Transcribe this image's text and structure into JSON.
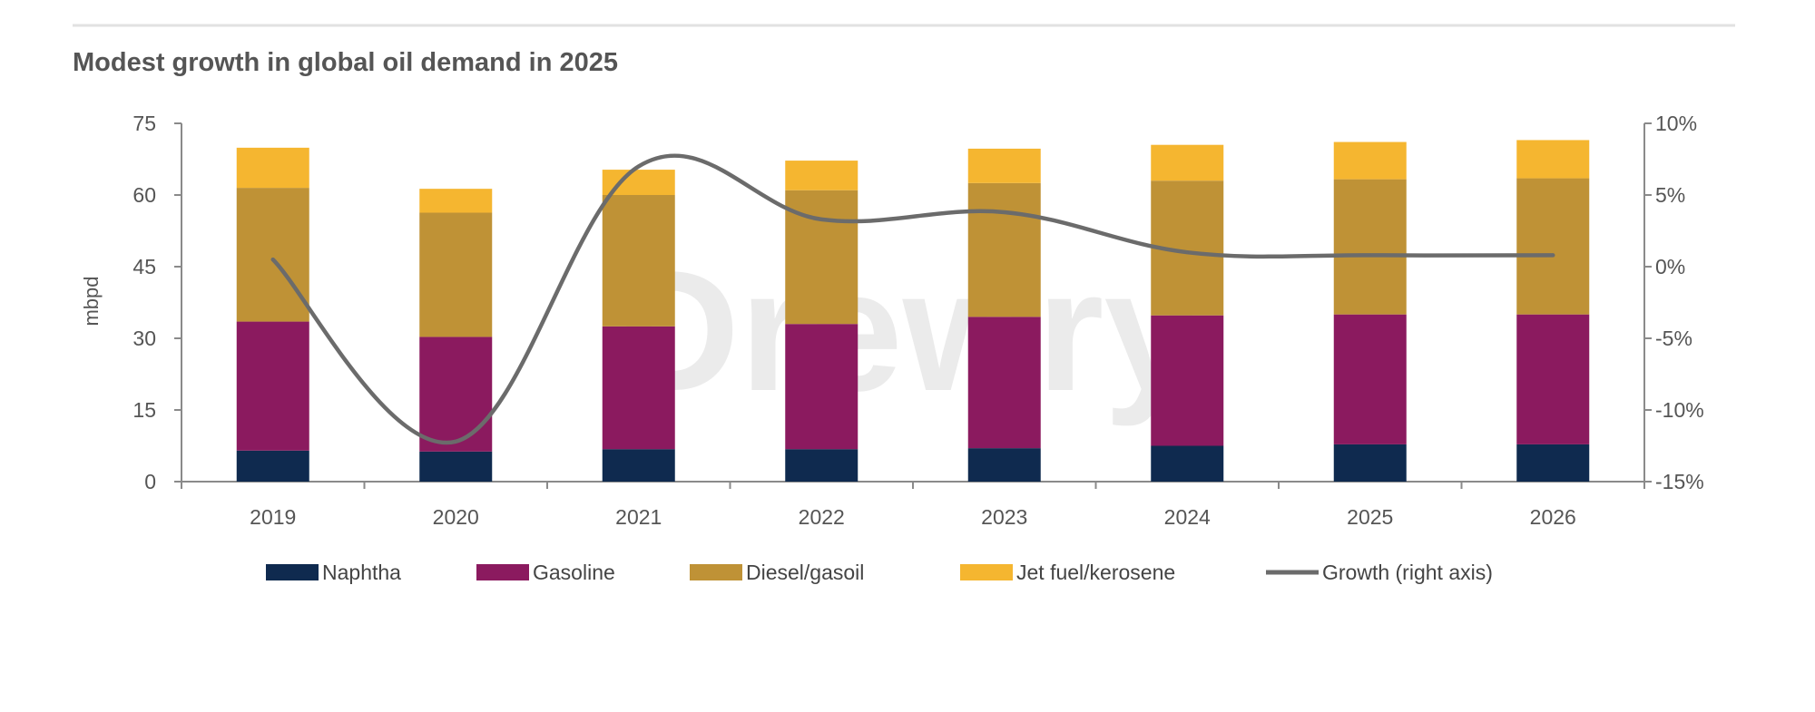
{
  "chart_data": {
    "type": "bar",
    "stacked": true,
    "title": "Modest growth in global oil demand in 2025",
    "ylabel": "mbpd",
    "ylim": [
      0,
      75
    ],
    "yticks": [
      "0",
      "15",
      "30",
      "45",
      "60",
      "75"
    ],
    "y2lim": [
      -15,
      10
    ],
    "y2ticks": [
      "-15%",
      "-10%",
      "-5%",
      "0%",
      "5%",
      "10%"
    ],
    "categories": [
      "2019",
      "2020",
      "2021",
      "2022",
      "2023",
      "2024",
      "2025",
      "2026"
    ],
    "series": [
      {
        "name": "Naphtha",
        "color": "#0f2a4f",
        "values": [
          6.5,
          6.3,
          6.8,
          6.8,
          7.0,
          7.5,
          7.8,
          7.8
        ]
      },
      {
        "name": "Gasoline",
        "color": "#8b1a5f",
        "values": [
          27.0,
          24.0,
          25.7,
          26.2,
          27.5,
          27.3,
          27.2,
          27.2
        ]
      },
      {
        "name": "Diesel/gasoil",
        "color": "#bf9236",
        "values": [
          28.0,
          26.0,
          27.5,
          28.0,
          28.0,
          28.2,
          28.3,
          28.5
        ]
      },
      {
        "name": "Jet fuel/kerosene",
        "color": "#f5b630",
        "values": [
          8.4,
          5.0,
          5.3,
          6.2,
          7.2,
          7.5,
          7.8,
          8.0
        ]
      }
    ],
    "line_series": {
      "name": "Growth (right axis)",
      "color": "#6b6b6b",
      "values": [
        0.5,
        -12.2,
        7.0,
        3.3,
        3.8,
        1.0,
        0.8,
        0.8
      ]
    },
    "legend_position": "bottom",
    "grid": false
  },
  "watermark": "Drewry"
}
